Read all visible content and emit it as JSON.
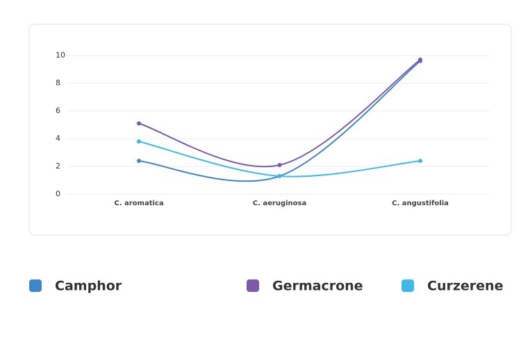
{
  "chart_data": {
    "type": "line",
    "categories": [
      "C. aromatica",
      "C. aeruginosa",
      "C. angustifolia"
    ],
    "series": [
      {
        "name": "Camphor",
        "color": "#3f87c8",
        "values": [
          2.4,
          1.3,
          9.6
        ]
      },
      {
        "name": "Germacrone",
        "color": "#7b5aa9",
        "values": [
          5.1,
          2.1,
          9.7
        ]
      },
      {
        "name": "Curzerene",
        "color": "#3dbbe6",
        "values": [
          3.8,
          1.3,
          2.4
        ]
      }
    ],
    "ylim": [
      0,
      10
    ],
    "yticks": [
      0,
      2,
      4,
      6,
      8,
      10
    ],
    "grid": true,
    "smooth": true
  }
}
